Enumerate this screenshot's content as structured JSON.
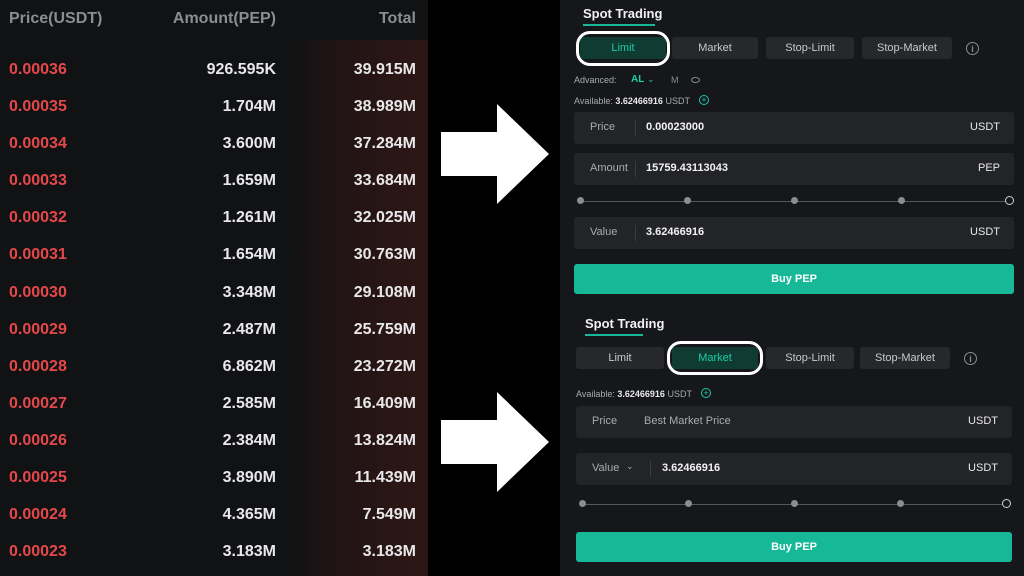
{
  "orderbook": {
    "headers": {
      "price": "Price(USDT)",
      "amount": "Amount(PEP)",
      "total": "Total"
    },
    "asks": [
      {
        "price": "0.00036",
        "amount": "926.595K",
        "total": "39.915M"
      },
      {
        "price": "0.00035",
        "amount": "1.704M",
        "total": "38.989M"
      },
      {
        "price": "0.00034",
        "amount": "3.600M",
        "total": "37.284M"
      },
      {
        "price": "0.00033",
        "amount": "1.659M",
        "total": "33.684M"
      },
      {
        "price": "0.00032",
        "amount": "1.261M",
        "total": "32.025M"
      },
      {
        "price": "0.00031",
        "amount": "1.654M",
        "total": "30.763M"
      },
      {
        "price": "0.00030",
        "amount": "3.348M",
        "total": "29.108M"
      },
      {
        "price": "0.00029",
        "amount": "2.487M",
        "total": "25.759M"
      },
      {
        "price": "0.00028",
        "amount": "6.862M",
        "total": "23.272M"
      },
      {
        "price": "0.00027",
        "amount": "2.585M",
        "total": "16.409M"
      },
      {
        "price": "0.00026",
        "amount": "2.384M",
        "total": "13.824M"
      },
      {
        "price": "0.00025",
        "amount": "3.890M",
        "total": "11.439M"
      },
      {
        "price": "0.00024",
        "amount": "4.365M",
        "total": "7.549M"
      },
      {
        "price": "0.00023",
        "amount": "3.183M",
        "total": "3.183M"
      }
    ]
  },
  "limit_panel": {
    "title": "Spot Trading",
    "tabs": [
      "Limit",
      "Market",
      "Stop-Limit",
      "Stop-Market"
    ],
    "active_tab": "Limit",
    "advanced_label": "Advanced:",
    "advanced_value": "AL",
    "advanced_m": "M",
    "available_label": "Available:",
    "available_value": "3.62466916",
    "available_unit": "USDT",
    "price": {
      "label": "Price",
      "value": "0.00023000",
      "unit": "USDT"
    },
    "amount": {
      "label": "Amount",
      "value": "15759.43113043",
      "unit": "PEP"
    },
    "value": {
      "label": "Value",
      "value": "3.62466916",
      "unit": "USDT"
    },
    "buy_button": "Buy PEP"
  },
  "market_panel": {
    "title": "Spot Trading",
    "tabs": [
      "Limit",
      "Market",
      "Stop-Limit",
      "Stop-Market"
    ],
    "active_tab": "Market",
    "available_label": "Available:",
    "available_value": "3.62466916",
    "available_unit": "USDT",
    "price": {
      "label": "Price",
      "value": "Best Market Price",
      "unit": "USDT"
    },
    "value": {
      "label": "Value",
      "value": "3.62466916",
      "unit": "USDT"
    },
    "buy_button": "Buy PEP"
  },
  "icons": [
    "info-icon",
    "add-funds-icon",
    "chevron-down-icon",
    "eye-icon",
    "right-arrow-icon"
  ],
  "colors": {
    "ask_red": "#e5484a",
    "accent_green": "#17b898",
    "panel_bg": "#16171a"
  }
}
